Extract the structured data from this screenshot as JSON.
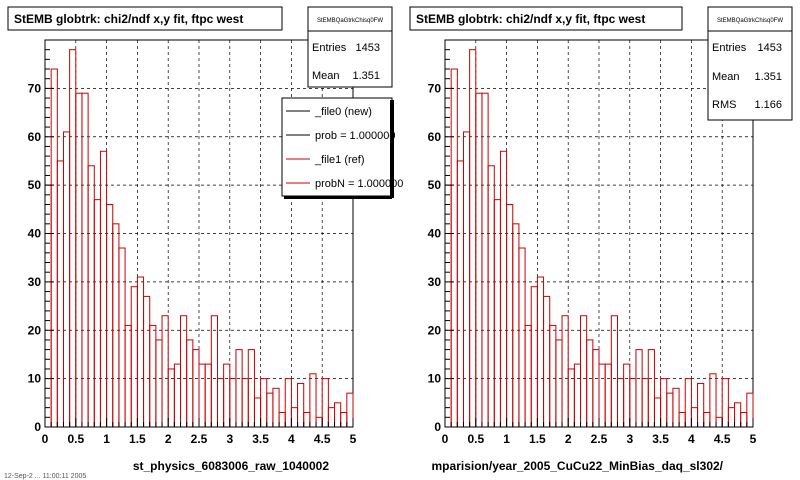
{
  "panels": [
    {
      "title": "StEMB globtrk: chi2/ndf x,y fit, ftpc west",
      "stats": {
        "name": "StEMBQaGtrkChisq0FW",
        "rows": [
          {
            "label": "Entries",
            "value": "1453"
          },
          {
            "label": "Mean",
            "value": "1.351"
          }
        ]
      },
      "legend": [
        {
          "label": "_file0 (new)",
          "color": "#000000"
        },
        {
          "label": "prob = 1.000000",
          "color": "#000000"
        },
        {
          "label": "_file1 (ref)",
          "color": "#cc0000"
        },
        {
          "label": "probN = 1.000000",
          "color": "#cc0000"
        }
      ],
      "xlabel": "st_physics_6083006_raw_1040002"
    },
    {
      "title": "StEMB globtrk: chi2/ndf x,y fit, ftpc west",
      "stats": {
        "name": "StEMBQaGtrkChisq0FW",
        "rows": [
          {
            "label": "Entries",
            "value": "1453"
          },
          {
            "label": "Mean",
            "value": "1.351"
          },
          {
            "label": "RMS",
            "value": "1.166"
          }
        ]
      },
      "legend": [],
      "xlabel": "mparision/year_2005_CuCu22_MinBias_daq_sl302/"
    }
  ],
  "footer": "12-Sep-2 ... 11:00:11 2005",
  "chart_data": {
    "type": "histogram",
    "xlim": [
      0,
      5
    ],
    "ylim": [
      0,
      80
    ],
    "x_ticks": [
      "0",
      "0.5",
      "1",
      "1.5",
      "2",
      "2.5",
      "3",
      "3.5",
      "4",
      "4.5",
      "5"
    ],
    "y_ticks": [
      "0",
      "10",
      "20",
      "30",
      "40",
      "50",
      "60",
      "70"
    ],
    "grid": true,
    "bin_edges_start": 0,
    "bin_width": 0.1,
    "series": [
      {
        "name": "_file1 (ref)",
        "color": "#cc0000",
        "values": [
          50,
          74,
          55,
          61,
          78,
          69,
          69,
          54,
          47,
          57,
          46,
          42,
          37,
          21,
          29,
          31,
          27,
          21,
          18,
          23,
          12,
          13,
          23,
          18,
          16,
          13,
          13,
          23,
          10,
          13,
          10,
          16,
          10,
          16,
          6,
          10,
          7,
          8,
          3,
          10,
          4,
          9,
          3,
          11,
          2,
          10,
          4,
          5,
          3,
          7,
          6
        ]
      }
    ]
  }
}
